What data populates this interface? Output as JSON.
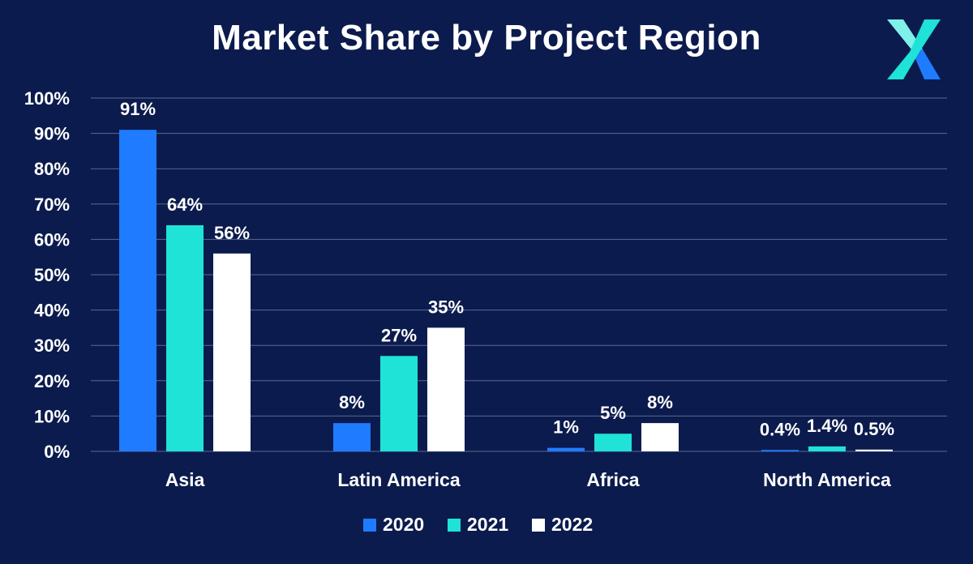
{
  "chart_data": {
    "type": "bar",
    "title": "Market Share by Project Region",
    "categories": [
      "Asia",
      "Latin America",
      "Africa",
      "North America"
    ],
    "series": [
      {
        "name": "2020",
        "color": "#1f7bff",
        "values": [
          91,
          8,
          1,
          0.4
        ],
        "labels": [
          "91%",
          "8%",
          "1%",
          "0.4%"
        ]
      },
      {
        "name": "2021",
        "color": "#1ee3d6",
        "values": [
          64,
          27,
          5,
          1.4
        ],
        "labels": [
          "64%",
          "27%",
          "5%",
          "1.4%"
        ]
      },
      {
        "name": "2022",
        "color": "#ffffff",
        "values": [
          56,
          35,
          8,
          0.5
        ],
        "labels": [
          "56%",
          "35%",
          "8%",
          "0.5%"
        ]
      }
    ],
    "ylim": [
      0,
      100
    ],
    "yticks": [
      0,
      10,
      20,
      30,
      40,
      50,
      60,
      70,
      80,
      90,
      100
    ],
    "ytick_labels": [
      "0%",
      "10%",
      "20%",
      "30%",
      "40%",
      "50%",
      "60%",
      "70%",
      "80%",
      "90%",
      "100%"
    ],
    "grid": true,
    "legend_position": "bottom-center",
    "xlabel": "",
    "ylabel": ""
  },
  "colors": {
    "background": "#0b1b4d",
    "gridline": "#5a6a92",
    "text": "#ffffff",
    "logo_light": "#7ff0ea",
    "logo_mid": "#1ee3d6",
    "logo_dark": "#1f7bff"
  },
  "logo": {
    "icon": "x-logo-icon"
  }
}
